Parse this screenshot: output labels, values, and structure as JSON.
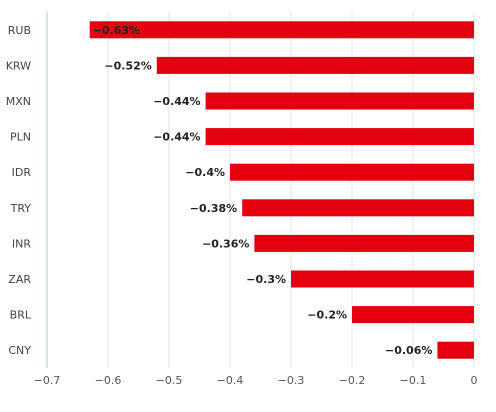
{
  "chart_data": {
    "type": "bar",
    "orientation": "horizontal",
    "title": "",
    "xlabel": "",
    "ylabel": "",
    "categories": [
      "RUB",
      "KRW",
      "MXN",
      "PLN",
      "IDR",
      "TRY",
      "INR",
      "ZAR",
      "BRL",
      "CNY"
    ],
    "values": [
      -0.63,
      -0.52,
      -0.44,
      -0.44,
      -0.4,
      -0.38,
      -0.36,
      -0.3,
      -0.2,
      -0.06
    ],
    "value_labels": [
      "−0.63%",
      "−0.52%",
      "−0.44%",
      "−0.44%",
      "−0.4%",
      "−0.38%",
      "−0.36%",
      "−0.3%",
      "−0.2%",
      "−0.06%"
    ],
    "xlim": [
      -0.7,
      0
    ],
    "x_ticks": [
      -0.7,
      -0.6,
      -0.5,
      -0.4,
      -0.3,
      -0.2,
      -0.1,
      0
    ],
    "x_tick_labels": [
      "−0.7",
      "−0.6",
      "−0.5",
      "−0.4",
      "−0.3",
      "−0.2",
      "−0.1",
      "0"
    ],
    "grid": true,
    "legend": "none",
    "bar_color": "#e4000f"
  }
}
